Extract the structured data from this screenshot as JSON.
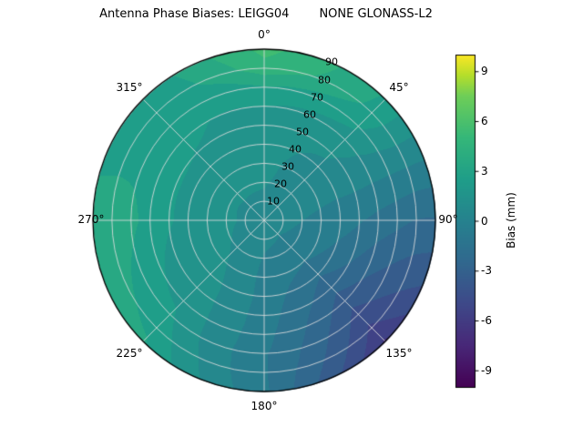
{
  "title": "Antenna Phase Biases: LEIGG04        NONE GLONASS-L2",
  "chart_data": {
    "type": "heatmap",
    "projection": "polar",
    "title": "Antenna Phase Biases: LEIGG04        NONE GLONASS-L2",
    "angular_tick_labels": [
      "0°",
      "45°",
      "90°",
      "135°",
      "180°",
      "225°",
      "270°",
      "315°"
    ],
    "radial_tick_labels": [
      "10",
      "20",
      "30",
      "40",
      "50",
      "60",
      "70",
      "80",
      "90"
    ],
    "radial_axis_max": 90,
    "grid": true,
    "colorbar": {
      "label": "Bias (mm)",
      "ticks": [
        "9",
        "6",
        "3",
        "0",
        "-3",
        "-6",
        "-9"
      ],
      "range": [
        -10,
        10
      ],
      "colormap": "viridis",
      "colormap_stops": [
        {
          "t": 0.0,
          "c": "#440154"
        },
        {
          "t": 0.125,
          "c": "#482878"
        },
        {
          "t": 0.25,
          "c": "#3e4989"
        },
        {
          "t": 0.375,
          "c": "#31688e"
        },
        {
          "t": 0.5,
          "c": "#26828e"
        },
        {
          "t": 0.625,
          "c": "#1f9e89"
        },
        {
          "t": 0.75,
          "c": "#35b779"
        },
        {
          "t": 0.875,
          "c": "#6ece58"
        },
        {
          "t": 0.9375,
          "c": "#b5de2b"
        },
        {
          "t": 1.0,
          "c": "#fde725"
        }
      ]
    },
    "azimuth_deg": [
      0,
      45,
      90,
      135,
      180,
      225,
      270,
      315,
      360
    ],
    "zenith_deg": [
      0,
      10,
      20,
      30,
      40,
      50,
      60,
      70,
      80,
      90
    ],
    "bias_mm": [
      [
        0.5,
        0.5,
        0.5,
        0.5,
        0.5,
        0.5,
        0.5,
        0.5,
        0.5
      ],
      [
        0.8,
        0.5,
        0.2,
        0.0,
        0.2,
        0.5,
        0.8,
        0.9,
        0.8
      ],
      [
        1.0,
        0.6,
        0.0,
        -0.5,
        0.0,
        0.8,
        1.2,
        1.2,
        1.0
      ],
      [
        1.2,
        0.7,
        -0.3,
        -1.0,
        -0.2,
        1.0,
        1.5,
        1.4,
        1.2
      ],
      [
        1.5,
        0.9,
        -0.7,
        -1.8,
        -0.4,
        1.3,
        1.8,
        1.6,
        1.5
      ],
      [
        1.8,
        1.1,
        -1.0,
        -2.5,
        -0.7,
        1.6,
        2.2,
        1.8,
        1.8
      ],
      [
        2.2,
        1.4,
        -1.3,
        -3.5,
        -0.9,
        2.0,
        2.6,
        2.0,
        2.2
      ],
      [
        3.0,
        1.9,
        -1.5,
        -4.5,
        -1.0,
        2.4,
        3.0,
        2.2,
        3.0
      ],
      [
        4.5,
        2.6,
        -1.8,
        -5.5,
        -0.8,
        2.8,
        3.3,
        2.3,
        4.5
      ],
      [
        5.0,
        3.0,
        -2.0,
        -6.5,
        -0.5,
        3.0,
        3.5,
        2.4,
        5.0
      ]
    ]
  }
}
